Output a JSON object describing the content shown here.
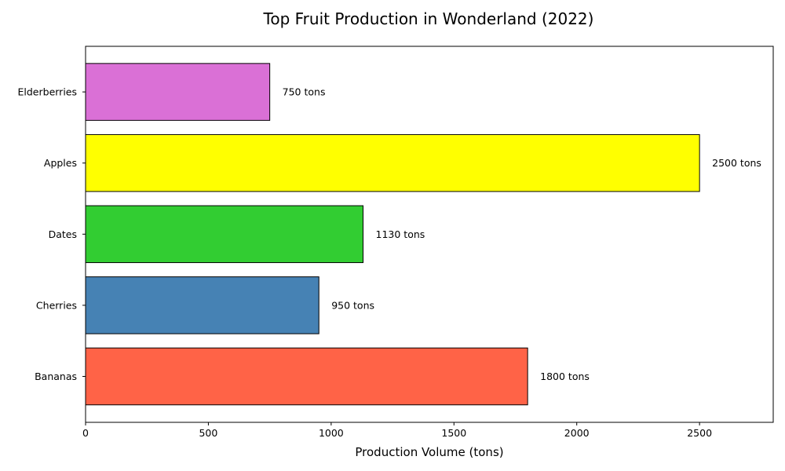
{
  "chart_data": {
    "type": "bar",
    "orientation": "horizontal",
    "title": "Top Fruit Production in Wonderland (2022)",
    "xlabel": "Production Volume (tons)",
    "ylabel": "",
    "categories": [
      "Bananas",
      "Cherries",
      "Dates",
      "Apples",
      "Elderberries"
    ],
    "values": [
      1800,
      950,
      1130,
      2500,
      750
    ],
    "value_labels": [
      "1800 tons",
      "950 tons",
      "1130 tons",
      "2500 tons",
      "750 tons"
    ],
    "colors": [
      "#ff6347",
      "#4682b4",
      "#32cd32",
      "#ffff00",
      "#da70d6"
    ],
    "xlim": [
      0,
      2800
    ],
    "xticks": [
      0,
      500,
      1000,
      1500,
      2000,
      2500
    ],
    "xtick_labels": [
      "0",
      "500",
      "1000",
      "1500",
      "2000",
      "2500"
    ],
    "grid": false,
    "legend": "none"
  }
}
